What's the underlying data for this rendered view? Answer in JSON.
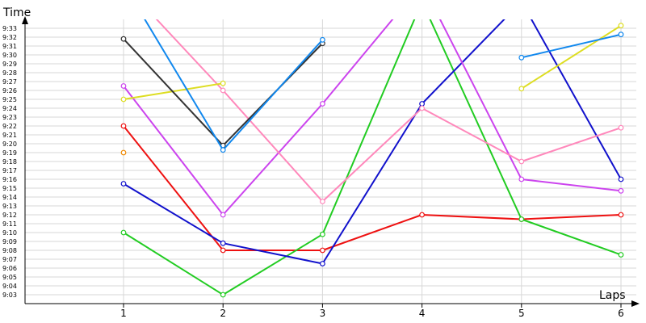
{
  "chart_data": {
    "type": "line",
    "xlabel": "Laps",
    "ylabel": "Time",
    "x": [
      1,
      2,
      3,
      4,
      5,
      6
    ],
    "ylim": [
      "9:02",
      "9:34"
    ],
    "y_ticks": [
      "9:03",
      "9:04",
      "9:05",
      "9:06",
      "9:07",
      "9:08",
      "9:09",
      "9:10",
      "9:11",
      "9:12",
      "9:13",
      "9:14",
      "9:15",
      "9:16",
      "9:17",
      "9:18",
      "9:19",
      "9:20",
      "9:21",
      "9:22",
      "9:23",
      "9:24",
      "9:25",
      "9:26",
      "9:27",
      "9:28",
      "9:29",
      "9:30",
      "9:31",
      "9:32",
      "9:33"
    ],
    "grid": true,
    "legend": "none",
    "series": [
      {
        "color": "#ee1111",
        "values": [
          "9:22",
          "9:08",
          "9:08",
          "9:12",
          "9:11.5",
          "9:12"
        ]
      },
      {
        "color": "#22cc22",
        "values": [
          "9:10",
          "9:03",
          "9:09.8",
          "9:36",
          "9:11.5",
          "9:07.5"
        ]
      },
      {
        "color": "#1111cc",
        "values": [
          "9:15.5",
          "9:08.8",
          "9:06.5",
          "9:24.5",
          "9:36",
          "9:16"
        ]
      },
      {
        "color": "#cc44ee",
        "values": [
          "9:26.5",
          "9:12",
          "9:24.5",
          "9:38",
          "9:16",
          "9:14.7"
        ]
      },
      {
        "color": "#ff88bb",
        "values": [
          "9:38",
          "9:26",
          "9:13.5",
          "9:24",
          "9:18",
          "9:21.8"
        ]
      },
      {
        "color": "#dddd22",
        "values": [
          "9:25",
          "9:26.8",
          null,
          null,
          "9:26.2",
          "9:33.3"
        ]
      },
      {
        "color": "#333333",
        "values": [
          "9:31.8",
          "9:19.8",
          "9:31.3",
          null,
          null,
          null
        ]
      },
      {
        "color": "#1188ee",
        "values": [
          "9:38",
          "9:19.3",
          "9:31.7",
          null,
          "9:29.7",
          "9:32.3"
        ]
      },
      {
        "color": "#ee8800",
        "values": [
          "9:19",
          null,
          null,
          null,
          null,
          null
        ]
      }
    ]
  }
}
